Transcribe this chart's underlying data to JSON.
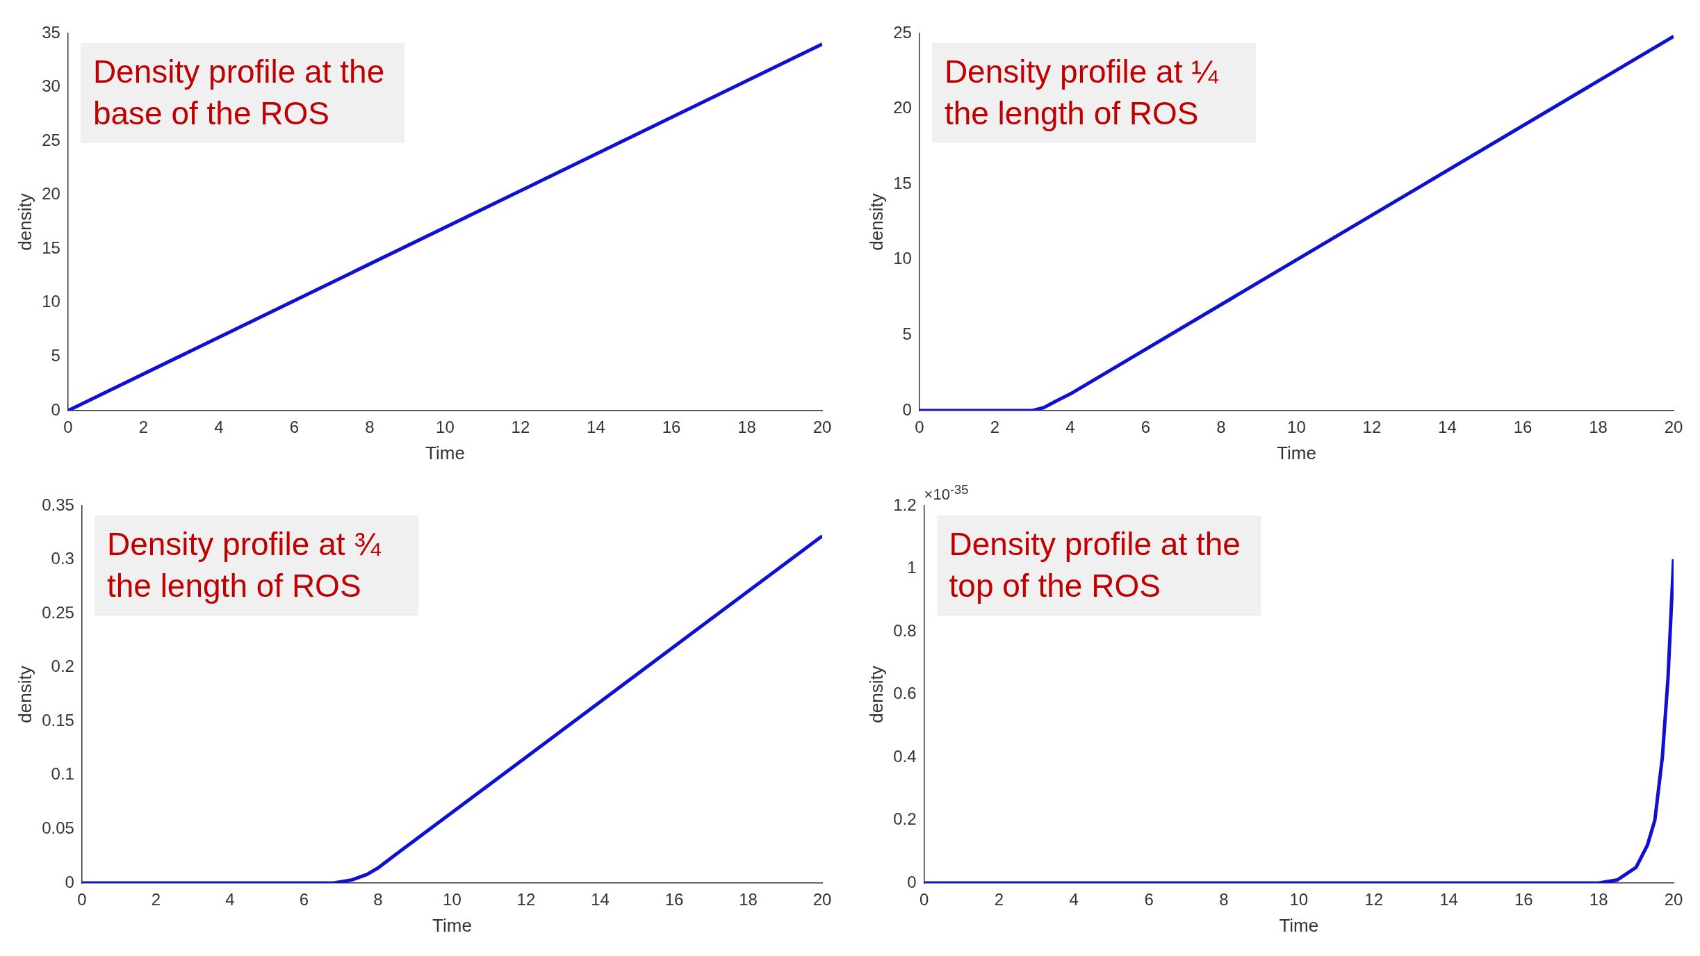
{
  "chart_data": [
    {
      "type": "line",
      "title": "Density profile at the base of the ROS",
      "xlabel": "Time",
      "ylabel": "density",
      "xlim": [
        0,
        20
      ],
      "xticks": [
        0,
        2,
        4,
        6,
        8,
        10,
        12,
        14,
        16,
        18,
        20
      ],
      "ylim": [
        0,
        35
      ],
      "yticks": [
        0,
        5,
        10,
        15,
        20,
        25,
        30,
        35
      ],
      "grid": false,
      "legend": false,
      "marker": "none",
      "line_style": "solid",
      "series": [
        {
          "color": "#1010d0",
          "x": [
            0,
            20
          ],
          "values": [
            0,
            34
          ]
        }
      ]
    },
    {
      "type": "line",
      "title": "Density profile at ¼ the length of ROS",
      "xlabel": "Time",
      "ylabel": "density",
      "xlim": [
        0,
        20
      ],
      "xticks": [
        0,
        2,
        4,
        6,
        8,
        10,
        12,
        14,
        16,
        18,
        20
      ],
      "ylim": [
        0,
        25
      ],
      "yticks": [
        0,
        5,
        10,
        15,
        20,
        25
      ],
      "grid": false,
      "legend": false,
      "marker": "none",
      "line_style": "solid",
      "series": [
        {
          "color": "#1010d0",
          "x": [
            0,
            3,
            3.3,
            3.6,
            4,
            20
          ],
          "values": [
            0,
            0,
            0.2,
            0.6,
            1.1,
            24.8
          ]
        }
      ]
    },
    {
      "type": "line",
      "title": "Density profile at ¾ the length of ROS",
      "xlabel": "Time",
      "ylabel": "density",
      "xlim": [
        0,
        20
      ],
      "xticks": [
        0,
        2,
        4,
        6,
        8,
        10,
        12,
        14,
        16,
        18,
        20
      ],
      "ylim": [
        0,
        0.35
      ],
      "yticks": [
        0,
        0.05,
        0.1,
        0.15,
        0.2,
        0.25,
        0.3,
        0.35
      ],
      "grid": false,
      "legend": false,
      "marker": "none",
      "line_style": "solid",
      "series": [
        {
          "color": "#1010d0",
          "x": [
            0,
            6.8,
            7.3,
            7.7,
            8,
            8.5,
            20
          ],
          "values": [
            0,
            0,
            0.003,
            0.008,
            0.014,
            0.027,
            0.322
          ]
        }
      ]
    },
    {
      "type": "line",
      "title": "Density profile at the top of the ROS",
      "xlabel": "Time",
      "ylabel": "density",
      "annotations": [
        "×10$^{-35}$"
      ],
      "xlim": [
        0,
        20
      ],
      "xticks": [
        0,
        2,
        4,
        6,
        8,
        10,
        12,
        14,
        16,
        18,
        20
      ],
      "ylim": [
        0,
        1.2
      ],
      "yticks": [
        0,
        0.2,
        0.4,
        0.6,
        0.8,
        1,
        1.2
      ],
      "grid": false,
      "legend": false,
      "marker": "none",
      "line_style": "solid",
      "series": [
        {
          "color": "#1010d0",
          "x": [
            0,
            18,
            18.5,
            19,
            19.3,
            19.5,
            19.7,
            19.85,
            20
          ],
          "values": [
            0,
            0,
            0.01,
            0.05,
            0.12,
            0.2,
            0.4,
            0.65,
            1.03
          ]
        }
      ]
    }
  ]
}
